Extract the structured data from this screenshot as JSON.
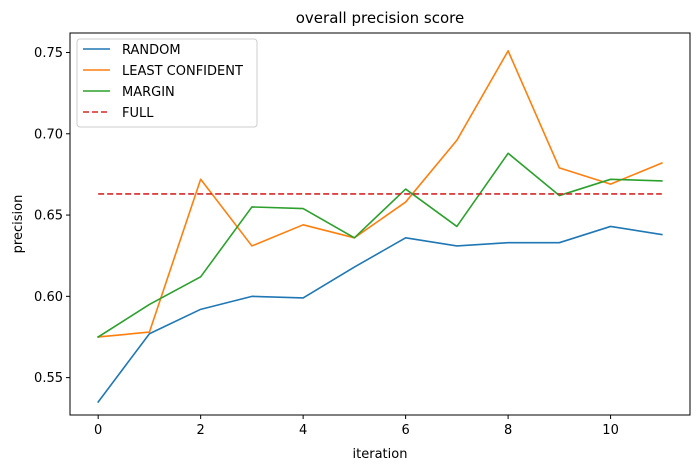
{
  "chart_data": {
    "type": "line",
    "title": "overall precision score",
    "xlabel": "iteration",
    "ylabel": "precision",
    "xlim": [
      -0.55,
      11.55
    ],
    "ylim": [
      0.527,
      0.762
    ],
    "xticks": [
      0,
      2,
      4,
      6,
      8,
      10
    ],
    "yticks": [
      0.55,
      0.6,
      0.65,
      0.7,
      0.75
    ],
    "grid": false,
    "legend_position": "top-left",
    "x": [
      0,
      1,
      2,
      3,
      4,
      5,
      6,
      7,
      8,
      9,
      10,
      11
    ],
    "series": [
      {
        "name": "RANDOM",
        "color": "#1f77b4",
        "style": "solid",
        "values": [
          0.535,
          0.577,
          0.592,
          0.6,
          0.599,
          0.618,
          0.636,
          0.631,
          0.633,
          0.633,
          0.643,
          0.638
        ]
      },
      {
        "name": "LEAST CONFIDENT",
        "color": "#ff7f0e",
        "style": "solid",
        "values": [
          0.575,
          0.578,
          0.672,
          0.631,
          0.644,
          0.636,
          0.658,
          0.696,
          0.751,
          0.679,
          0.669,
          0.682
        ]
      },
      {
        "name": "MARGIN",
        "color": "#2ca02c",
        "style": "solid",
        "values": [
          0.575,
          0.595,
          0.612,
          0.655,
          0.654,
          0.636,
          0.666,
          0.643,
          0.688,
          0.662,
          0.672,
          0.671
        ]
      },
      {
        "name": "FULL",
        "color": "#d62728",
        "style": "dashed",
        "values": [
          0.663,
          0.663,
          0.663,
          0.663,
          0.663,
          0.663,
          0.663,
          0.663,
          0.663,
          0.663,
          0.663,
          0.663
        ]
      }
    ]
  }
}
